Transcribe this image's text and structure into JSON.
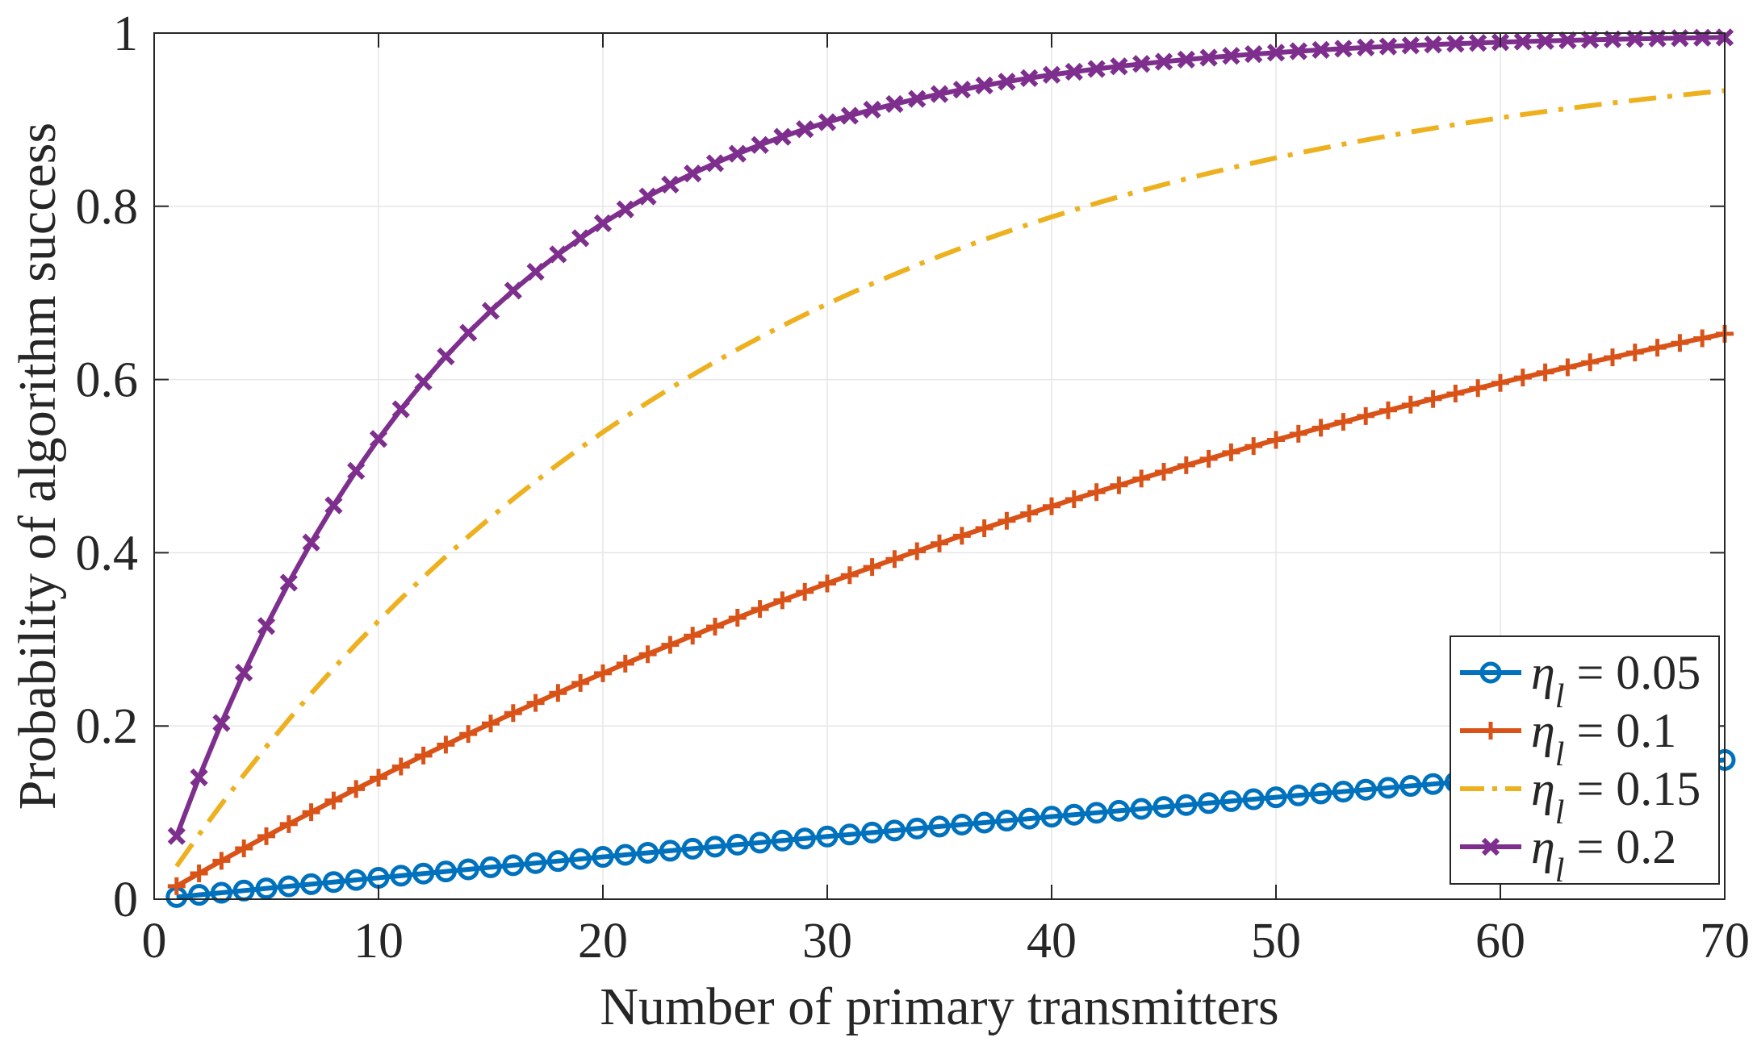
{
  "chart_data": {
    "type": "line",
    "title": "",
    "xlabel": "Number of primary transmitters",
    "ylabel": "Probability of algorithm success",
    "xlim": [
      0,
      70
    ],
    "ylim": [
      0,
      1
    ],
    "xticks": [
      0,
      10,
      20,
      30,
      40,
      50,
      60,
      70
    ],
    "yticks": [
      0,
      0.2,
      0.4,
      0.6,
      0.8,
      1
    ],
    "xtick_labels": [
      "0",
      "10",
      "20",
      "30",
      "40",
      "50",
      "60",
      "70"
    ],
    "ytick_labels": [
      "0",
      "0.2",
      "0.4",
      "0.6",
      "0.8",
      "1"
    ],
    "grid": true,
    "legend_position": "bottom-right",
    "x_range": [
      1,
      70
    ],
    "series": [
      {
        "name": "η_l = 0.05",
        "legend_symbol": "η",
        "legend_sub": "l",
        "legend_value": " = 0.05",
        "color": "#0072BD",
        "marker": "circle",
        "line_style": "solid",
        "start": 0.0025,
        "end": 0.158
      },
      {
        "name": "η_l = 0.1",
        "legend_symbol": "η",
        "legend_sub": "l",
        "legend_value": " = 0.1",
        "color": "#D95319",
        "marker": "plus",
        "line_style": "solid",
        "start": 0.015,
        "end": 0.655
      },
      {
        "name": "η_l = 0.15",
        "legend_symbol": "η",
        "legend_sub": "l",
        "legend_value": " = 0.15",
        "color": "#EDB120",
        "marker": "none",
        "line_style": "dashdot",
        "start": 0.038,
        "end": 0.94
      },
      {
        "name": "η_l = 0.2",
        "legend_symbol": "η",
        "legend_sub": "l",
        "legend_value": " = 0.2",
        "color": "#7E2F8E",
        "marker": "x",
        "line_style": "solid",
        "start": 0.073,
        "end": 0.995
      }
    ]
  }
}
